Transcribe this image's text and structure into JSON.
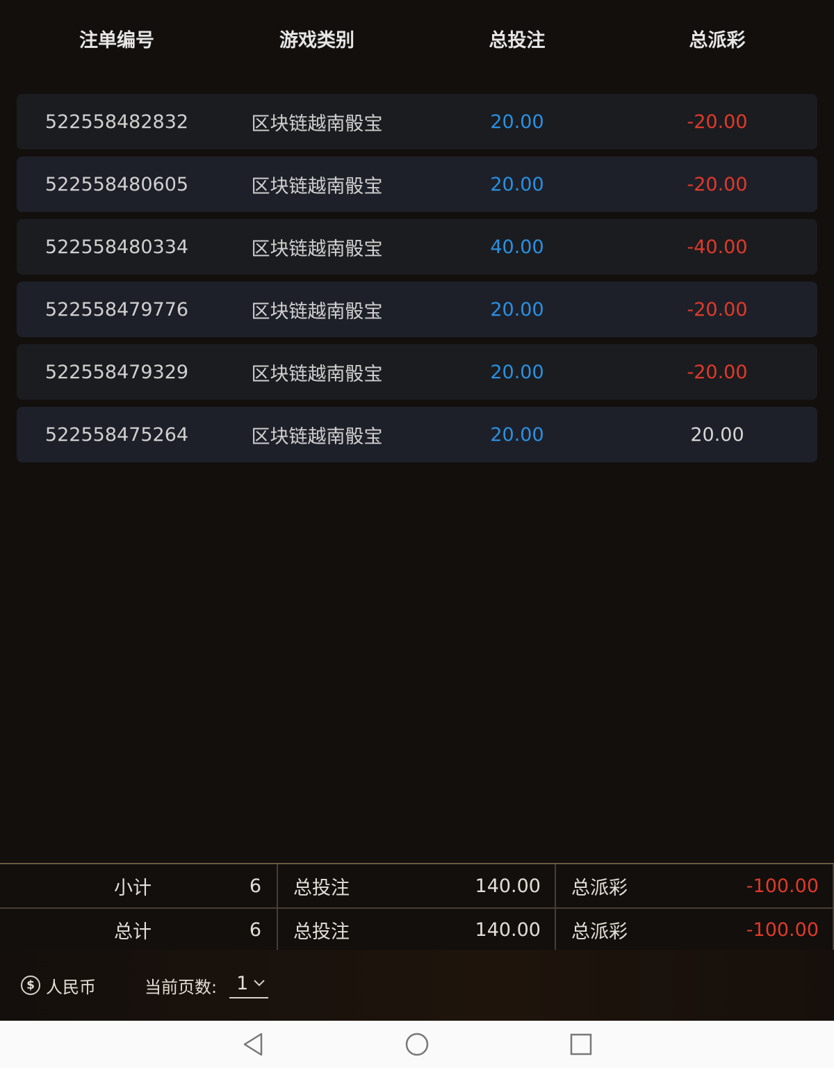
{
  "columns": [
    "注单编号",
    "游戏类别",
    "总投注",
    "总派彩"
  ],
  "rows": [
    {
      "id": "522558482832",
      "game": "区块链越南骰宝",
      "bet": "20.00",
      "payout": "-20.00",
      "payout_type": "red"
    },
    {
      "id": "522558480605",
      "game": "区块链越南骰宝",
      "bet": "20.00",
      "payout": "-20.00",
      "payout_type": "red"
    },
    {
      "id": "522558480334",
      "game": "区块链越南骰宝",
      "bet": "40.00",
      "payout": "-40.00",
      "payout_type": "red"
    },
    {
      "id": "522558479776",
      "game": "区块链越南骰宝",
      "bet": "20.00",
      "payout": "-20.00",
      "payout_type": "red"
    },
    {
      "id": "522558479329",
      "game": "区块链越南骰宝",
      "bet": "20.00",
      "payout": "-20.00",
      "payout_type": "red"
    },
    {
      "id": "522558475264",
      "game": "区块链越南骰宝",
      "bet": "20.00",
      "payout": "20.00",
      "payout_type": "plain"
    }
  ],
  "summary": [
    {
      "label": "小计",
      "count": "6",
      "bet_label": "总投注",
      "bet": "140.00",
      "payout_label": "总派彩",
      "payout": "-100.00"
    },
    {
      "label": "总计",
      "count": "6",
      "bet_label": "总投注",
      "bet": "140.00",
      "payout_label": "总派彩",
      "payout": "-100.00"
    }
  ],
  "footer": {
    "currency_icon": "dollar-circle-icon",
    "currency": "人民币",
    "page_label": "当前页数:",
    "page_value": "1"
  },
  "colors": {
    "bet": "#2a90e2",
    "negative": "#e03a2a",
    "background": "#120f0d"
  }
}
